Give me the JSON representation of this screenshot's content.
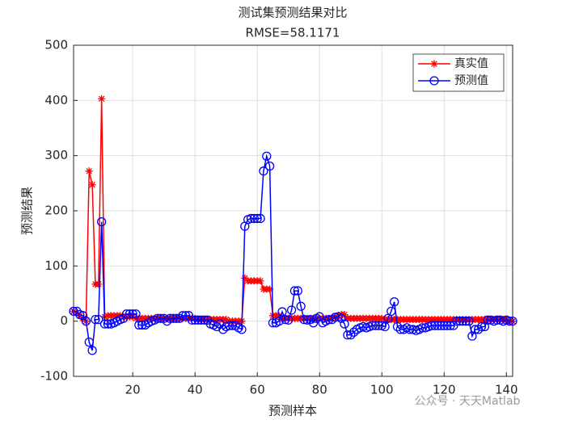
{
  "chart_data": {
    "type": "line",
    "title": "测试集预测结果对比",
    "subtitle": "RMSE=58.1171",
    "xlabel": "预测样本",
    "ylabel": "预测结果",
    "watermark": "公众号 · 天天Matlab",
    "x": [
      1,
      2,
      3,
      4,
      5,
      6,
      7,
      8,
      9,
      10,
      11,
      12,
      13,
      14,
      15,
      16,
      17,
      18,
      19,
      20,
      21,
      22,
      23,
      24,
      25,
      26,
      27,
      28,
      29,
      30,
      31,
      32,
      33,
      34,
      35,
      36,
      37,
      38,
      39,
      40,
      41,
      42,
      43,
      44,
      45,
      46,
      47,
      48,
      49,
      50,
      51,
      52,
      53,
      54,
      55,
      56,
      57,
      58,
      59,
      60,
      61,
      62,
      63,
      64,
      65,
      66,
      67,
      68,
      69,
      70,
      71,
      72,
      73,
      74,
      75,
      76,
      77,
      78,
      79,
      80,
      81,
      82,
      83,
      84,
      85,
      86,
      87,
      88,
      89,
      90,
      91,
      92,
      93,
      94,
      95,
      96,
      97,
      98,
      99,
      100,
      101,
      102,
      103,
      104,
      105,
      106,
      107,
      108,
      109,
      110,
      111,
      112,
      113,
      114,
      115,
      116,
      117,
      118,
      119,
      120,
      121,
      122,
      123,
      124,
      125,
      126,
      127,
      128,
      129,
      130,
      131,
      132,
      133,
      134,
      135,
      136,
      137,
      138,
      139,
      140,
      141,
      142
    ],
    "series": [
      {
        "name": "真实值",
        "color": "#ff0000",
        "marker": "asterisk",
        "values": [
          18,
          15,
          10,
          5,
          0,
          272,
          247,
          67,
          67,
          403,
          8,
          10,
          10,
          10,
          10,
          10,
          8,
          8,
          8,
          8,
          5,
          5,
          5,
          5,
          5,
          5,
          5,
          5,
          5,
          5,
          5,
          5,
          5,
          5,
          5,
          5,
          5,
          5,
          5,
          5,
          3,
          3,
          3,
          3,
          3,
          3,
          3,
          3,
          3,
          3,
          0,
          0,
          0,
          0,
          0,
          78,
          73,
          73,
          73,
          73,
          73,
          58,
          58,
          58,
          10,
          10,
          10,
          5,
          5,
          5,
          5,
          5,
          5,
          5,
          5,
          5,
          5,
          5,
          5,
          5,
          5,
          5,
          5,
          5,
          8,
          10,
          12,
          12,
          5,
          5,
          5,
          5,
          5,
          5,
          5,
          5,
          5,
          5,
          5,
          5,
          3,
          3,
          3,
          3,
          3,
          3,
          3,
          3,
          3,
          3,
          3,
          3,
          3,
          3,
          3,
          3,
          3,
          3,
          3,
          3,
          3,
          3,
          3,
          3,
          3,
          3,
          3,
          3,
          3,
          3,
          3,
          3,
          3,
          3,
          3,
          3,
          3,
          3,
          3,
          3,
          0,
          0
        ]
      },
      {
        "name": "预测值",
        "color": "#0000ff",
        "marker": "circle",
        "values": [
          18,
          18,
          12,
          10,
          0,
          -38,
          -53,
          3,
          3,
          180,
          -5,
          -5,
          -5,
          -3,
          0,
          3,
          5,
          13,
          13,
          13,
          13,
          -7,
          -7,
          -7,
          -3,
          0,
          2,
          5,
          5,
          5,
          0,
          5,
          5,
          5,
          5,
          10,
          10,
          10,
          2,
          2,
          2,
          2,
          2,
          2,
          -5,
          -7,
          -10,
          -5,
          -15,
          -10,
          -8,
          -8,
          -8,
          -12,
          -15,
          172,
          184,
          186,
          186,
          186,
          186,
          272,
          299,
          281,
          -3,
          -3,
          0,
          17,
          3,
          2,
          20,
          55,
          55,
          27,
          3,
          2,
          3,
          -3,
          5,
          8,
          -3,
          0,
          3,
          3,
          7,
          8,
          5,
          -5,
          -25,
          -25,
          -20,
          -15,
          -12,
          -10,
          -12,
          -10,
          -8,
          -8,
          -8,
          -8,
          -10,
          5,
          18,
          35,
          -10,
          -15,
          -15,
          -12,
          -15,
          -15,
          -17,
          -15,
          -12,
          -12,
          -10,
          -8,
          -8,
          -8,
          -8,
          -8,
          -8,
          -8,
          -8,
          0,
          0,
          0,
          0,
          0,
          -27,
          -15,
          -15,
          -10,
          -10,
          2,
          2,
          0,
          2,
          2,
          0,
          2,
          0,
          0
        ]
      }
    ],
    "xlim": [
      1,
      142
    ],
    "ylim": [
      -100,
      500
    ],
    "xticks": [
      20,
      40,
      60,
      80,
      100,
      120,
      140
    ],
    "yticks": [
      -100,
      0,
      100,
      200,
      300,
      400,
      500
    ],
    "grid": true,
    "legend": "top-right"
  }
}
